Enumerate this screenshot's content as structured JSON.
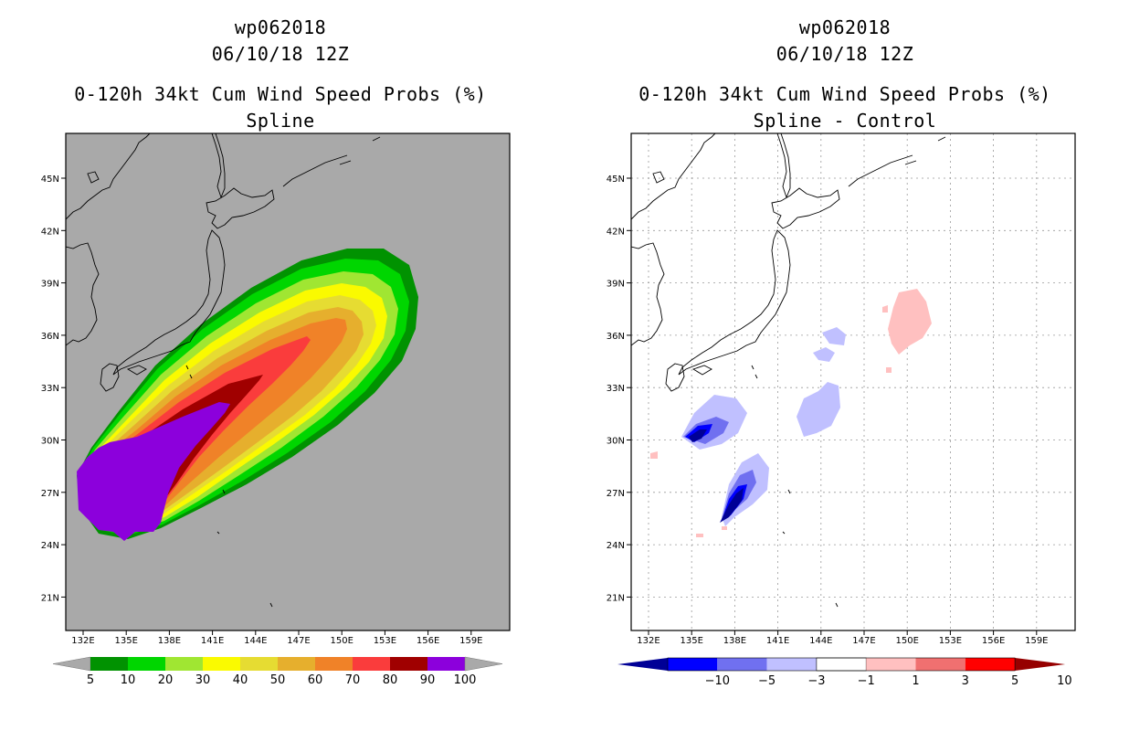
{
  "left_panel": {
    "title_line1": "wp062018",
    "title_line2": "06/10/18 12Z",
    "title_line3": "0-120h 34kt Cum Wind Speed Probs (%)",
    "title_line4": "Spline",
    "colorbar_labels": [
      "5",
      "10",
      "20",
      "30",
      "40",
      "50",
      "60",
      "70",
      "80",
      "90",
      "100"
    ],
    "colorbar_colors": [
      "#019201",
      "#00d600",
      "#a0e632",
      "#fafa00",
      "#e6dc32",
      "#e6af2d",
      "#f08228",
      "#fa3c3c",
      "#a00000",
      "#8c00dc"
    ],
    "background_color": "#a9a9a9"
  },
  "right_panel": {
    "title_line1": "wp062018",
    "title_line2": "06/10/18 12Z",
    "title_line3": "0-120h 34kt Cum Wind Speed Probs (%)",
    "title_line4": "Spline - Control",
    "colorbar_labels": [
      "−10",
      "−5",
      "−3",
      "−1",
      "1",
      "3",
      "5",
      "10"
    ],
    "colorbar_colors": [
      "#000096",
      "#0000ff",
      "#7070f0",
      "#c0c0ff",
      "#ffffff",
      "#ffc0c0",
      "#f07070",
      "#ff0000",
      "#960000"
    ]
  },
  "lat_labels": [
    "45N",
    "42N",
    "39N",
    "36N",
    "33N",
    "30N",
    "27N",
    "24N",
    "21N"
  ],
  "lon_labels": [
    "132E",
    "135E",
    "138E",
    "141E",
    "144E",
    "147E",
    "150E",
    "153E",
    "156E",
    "159E"
  ]
}
